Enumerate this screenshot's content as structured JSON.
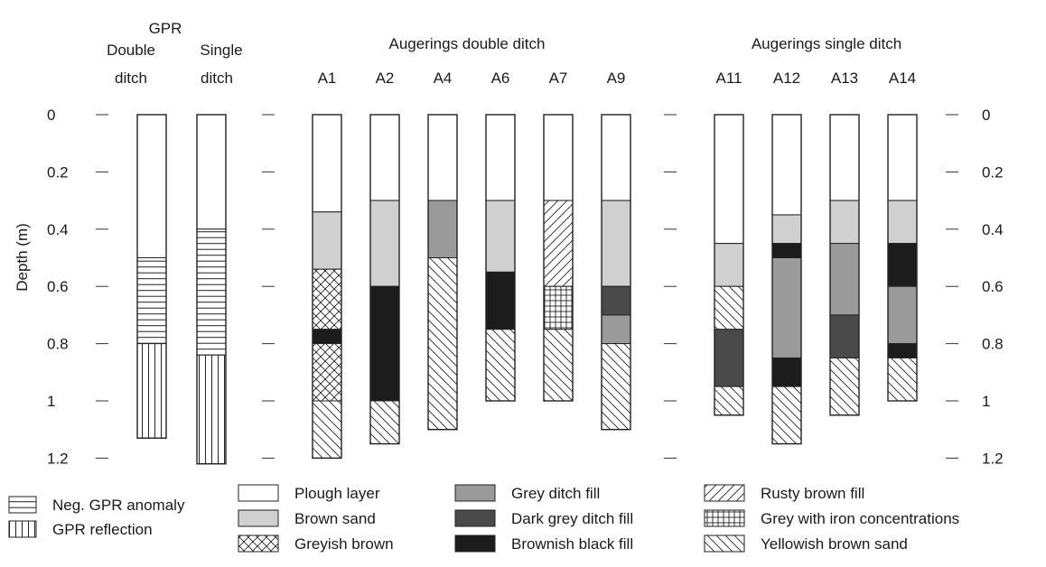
{
  "header": {
    "gpr": "GPR",
    "double_ditch_line1": "Double",
    "double_ditch_line2": "ditch",
    "single_ditch_line1": "Single",
    "single_ditch_line2": "ditch",
    "augerings_double": "Augerings double ditch",
    "augerings_single": "Augerings single ditch"
  },
  "y_axis": {
    "label": "Depth (m)",
    "ticks": [
      "0",
      "0.2",
      "0.4",
      "0.6",
      "0.8",
      "1",
      "1.2"
    ],
    "tick_values": [
      0,
      0.2,
      0.4,
      0.6,
      0.8,
      1.0,
      1.2
    ]
  },
  "colors": {
    "plough": "#ffffff",
    "brown_sand": "#d0d0d0",
    "grey_fill": "#9a9a9a",
    "dark_grey_fill": "#4a4a4a",
    "brownish_black": "#1c1c1c"
  },
  "columns": [
    {
      "id": "gpr-double",
      "label": "",
      "layers": [
        {
          "type": "plough",
          "from": 0,
          "to": 0.5
        },
        {
          "type": "neg_gpr",
          "from": 0.5,
          "to": 0.8
        },
        {
          "type": "gpr_reflection",
          "from": 0.8,
          "to": 1.13
        }
      ]
    },
    {
      "id": "gpr-single",
      "label": "",
      "layers": [
        {
          "type": "plough",
          "from": 0,
          "to": 0.4
        },
        {
          "type": "neg_gpr",
          "from": 0.4,
          "to": 0.84
        },
        {
          "type": "gpr_reflection",
          "from": 0.84,
          "to": 1.22
        }
      ]
    },
    {
      "id": "A1",
      "label": "A1",
      "layers": [
        {
          "type": "plough",
          "from": 0,
          "to": 0.34
        },
        {
          "type": "brown_sand",
          "from": 0.34,
          "to": 0.54
        },
        {
          "type": "greyish_brown",
          "from": 0.54,
          "to": 0.75
        },
        {
          "type": "brownish_black",
          "from": 0.75,
          "to": 0.8
        },
        {
          "type": "greyish_brown",
          "from": 0.8,
          "to": 1.0
        },
        {
          "type": "yellowish_brown",
          "from": 1.0,
          "to": 1.2
        }
      ]
    },
    {
      "id": "A2",
      "label": "A2",
      "layers": [
        {
          "type": "plough",
          "from": 0,
          "to": 0.3
        },
        {
          "type": "brown_sand",
          "from": 0.3,
          "to": 0.6
        },
        {
          "type": "brownish_black",
          "from": 0.6,
          "to": 1.0
        },
        {
          "type": "yellowish_brown",
          "from": 1.0,
          "to": 1.15
        }
      ]
    },
    {
      "id": "A4",
      "label": "A4",
      "layers": [
        {
          "type": "plough",
          "from": 0,
          "to": 0.3
        },
        {
          "type": "grey_fill",
          "from": 0.3,
          "to": 0.5
        },
        {
          "type": "yellowish_brown",
          "from": 0.5,
          "to": 1.1
        }
      ]
    },
    {
      "id": "A6",
      "label": "A6",
      "layers": [
        {
          "type": "plough",
          "from": 0,
          "to": 0.3
        },
        {
          "type": "brown_sand",
          "from": 0.3,
          "to": 0.55
        },
        {
          "type": "brownish_black",
          "from": 0.55,
          "to": 0.75
        },
        {
          "type": "yellowish_brown",
          "from": 0.75,
          "to": 1.0
        }
      ]
    },
    {
      "id": "A7",
      "label": "A7",
      "layers": [
        {
          "type": "plough",
          "from": 0,
          "to": 0.3
        },
        {
          "type": "rusty_brown",
          "from": 0.3,
          "to": 0.6
        },
        {
          "type": "grey_iron",
          "from": 0.6,
          "to": 0.75
        },
        {
          "type": "yellowish_brown",
          "from": 0.75,
          "to": 1.0
        }
      ]
    },
    {
      "id": "A9",
      "label": "A9",
      "layers": [
        {
          "type": "plough",
          "from": 0,
          "to": 0.3
        },
        {
          "type": "brown_sand",
          "from": 0.3,
          "to": 0.6
        },
        {
          "type": "dark_grey_fill",
          "from": 0.6,
          "to": 0.7
        },
        {
          "type": "grey_fill",
          "from": 0.7,
          "to": 0.8
        },
        {
          "type": "yellowish_brown",
          "from": 0.8,
          "to": 1.1
        }
      ]
    },
    {
      "id": "A11",
      "label": "A11",
      "layers": [
        {
          "type": "plough",
          "from": 0,
          "to": 0.45
        },
        {
          "type": "brown_sand",
          "from": 0.45,
          "to": 0.6
        },
        {
          "type": "yellowish_brown",
          "from": 0.6,
          "to": 0.75
        },
        {
          "type": "dark_grey_fill",
          "from": 0.75,
          "to": 0.95
        },
        {
          "type": "yellowish_brown",
          "from": 0.95,
          "to": 1.05
        }
      ]
    },
    {
      "id": "A12",
      "label": "A12",
      "layers": [
        {
          "type": "plough",
          "from": 0,
          "to": 0.35
        },
        {
          "type": "brown_sand",
          "from": 0.35,
          "to": 0.45
        },
        {
          "type": "brownish_black",
          "from": 0.45,
          "to": 0.5
        },
        {
          "type": "grey_fill",
          "from": 0.5,
          "to": 0.85
        },
        {
          "type": "brownish_black",
          "from": 0.85,
          "to": 0.95
        },
        {
          "type": "yellowish_brown",
          "from": 0.95,
          "to": 1.15
        }
      ]
    },
    {
      "id": "A13",
      "label": "A13",
      "layers": [
        {
          "type": "plough",
          "from": 0,
          "to": 0.3
        },
        {
          "type": "brown_sand",
          "from": 0.3,
          "to": 0.45
        },
        {
          "type": "grey_fill",
          "from": 0.45,
          "to": 0.7
        },
        {
          "type": "dark_grey_fill",
          "from": 0.7,
          "to": 0.85
        },
        {
          "type": "yellowish_brown",
          "from": 0.85,
          "to": 1.05
        }
      ]
    },
    {
      "id": "A14",
      "label": "A14",
      "layers": [
        {
          "type": "plough",
          "from": 0,
          "to": 0.3
        },
        {
          "type": "brown_sand",
          "from": 0.3,
          "to": 0.45
        },
        {
          "type": "brownish_black",
          "from": 0.45,
          "to": 0.6
        },
        {
          "type": "grey_fill",
          "from": 0.6,
          "to": 0.8
        },
        {
          "type": "brownish_black",
          "from": 0.8,
          "to": 0.85
        },
        {
          "type": "yellowish_brown",
          "from": 0.85,
          "to": 1.0
        }
      ]
    }
  ],
  "legend": [
    {
      "type": "neg_gpr",
      "label": "Neg. GPR anomaly"
    },
    {
      "type": "gpr_reflection",
      "label": "GPR reflection"
    },
    {
      "type": "plough",
      "label": "Plough layer"
    },
    {
      "type": "brown_sand",
      "label": "Brown sand"
    },
    {
      "type": "greyish_brown",
      "label": "Greyish brown"
    },
    {
      "type": "grey_fill",
      "label": "Grey ditch fill"
    },
    {
      "type": "dark_grey_fill",
      "label": "Dark grey ditch fill"
    },
    {
      "type": "brownish_black",
      "label": "Brownish black fill"
    },
    {
      "type": "rusty_brown",
      "label": "Rusty brown fill"
    },
    {
      "type": "grey_iron",
      "label": "Grey with iron concentrations"
    },
    {
      "type": "yellowish_brown",
      "label": "Yellowish brown sand"
    }
  ]
}
